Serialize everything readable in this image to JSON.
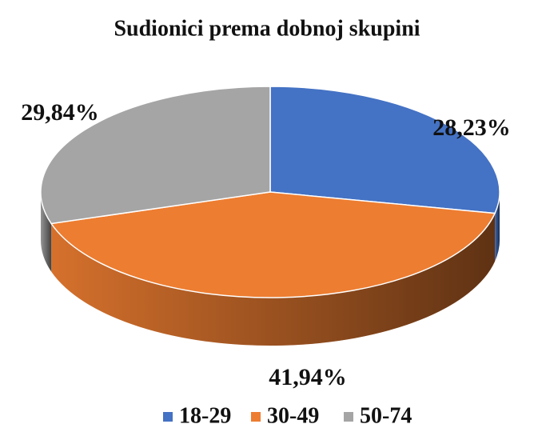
{
  "chart_data": {
    "type": "pie",
    "title": "Sudionici prema dobnoj skupini",
    "categories": [
      "18-29",
      "30-49",
      "50-74"
    ],
    "values": [
      28.23,
      41.94,
      29.84
    ],
    "value_labels": [
      "28,23%",
      "41,94%",
      "29,84%"
    ],
    "colors": [
      "#4472c4",
      "#ed7d31",
      "#a5a5a5"
    ]
  }
}
